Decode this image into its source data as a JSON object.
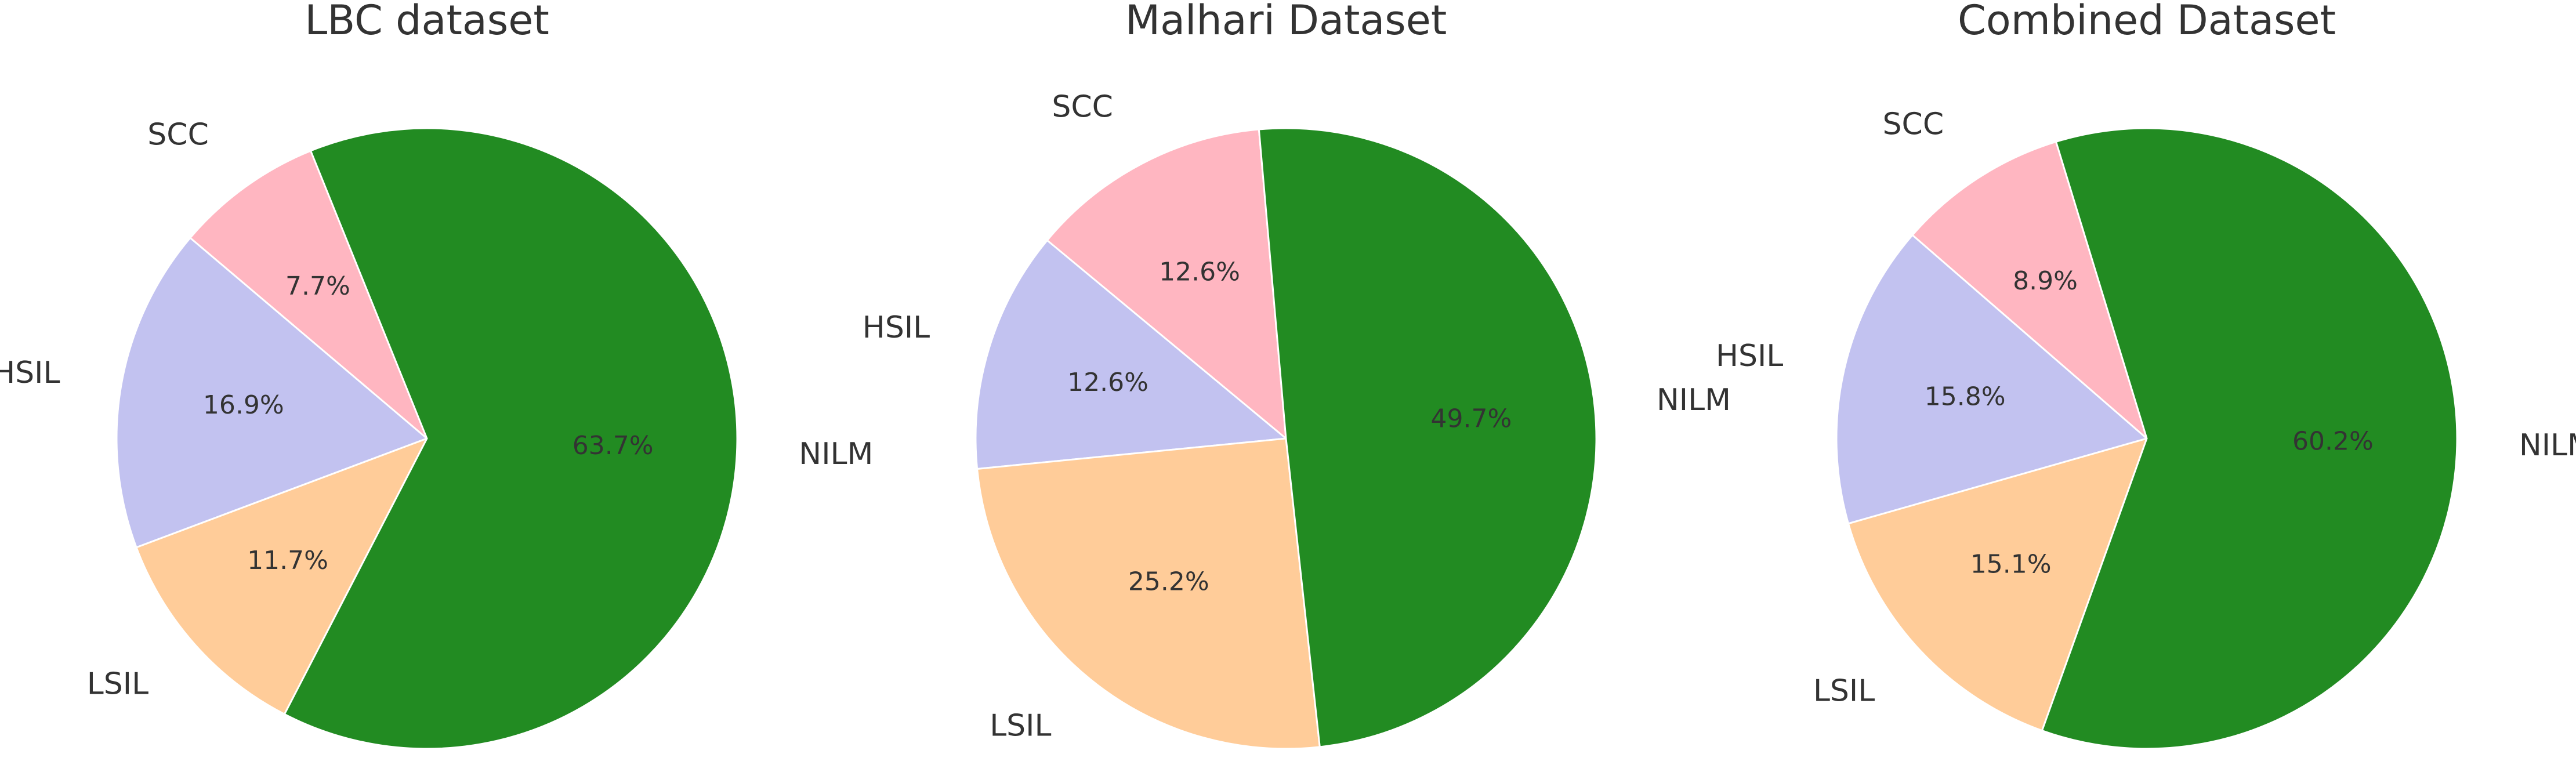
{
  "chart_data": [
    {
      "type": "pie",
      "title": "LBC dataset",
      "categories": [
        "SCC",
        "HSIL",
        "LSIL",
        "NILM"
      ],
      "values": [
        7.7,
        16.9,
        11.7,
        63.7
      ],
      "value_labels": [
        "7.7%",
        "16.9%",
        "11.7%",
        "63.7%"
      ],
      "colors": [
        "#ffb6c1",
        "#c2c2f0",
        "#ffcc99",
        "#228b22"
      ],
      "startangle": 112
    },
    {
      "type": "pie",
      "title": "Malhari Dataset",
      "categories": [
        "SCC",
        "HSIL",
        "LSIL",
        "NILM"
      ],
      "values": [
        12.6,
        12.6,
        25.2,
        49.7
      ],
      "value_labels": [
        "12.6%",
        "12.6%",
        "25.2%",
        "49.7%"
      ],
      "colors": [
        "#ffb6c1",
        "#c2c2f0",
        "#ffcc99",
        "#228b22"
      ],
      "startangle": 95
    },
    {
      "type": "pie",
      "title": "Combined Dataset",
      "categories": [
        "SCC",
        "HSIL",
        "LSIL",
        "NILM"
      ],
      "values": [
        8.9,
        15.8,
        15.1,
        60.2
      ],
      "value_labels": [
        "8.9%",
        "15.8%",
        "15.1%",
        "60.2%"
      ],
      "colors": [
        "#ffb6c1",
        "#c2c2f0",
        "#ffcc99",
        "#228b22"
      ],
      "startangle": 107
    }
  ]
}
